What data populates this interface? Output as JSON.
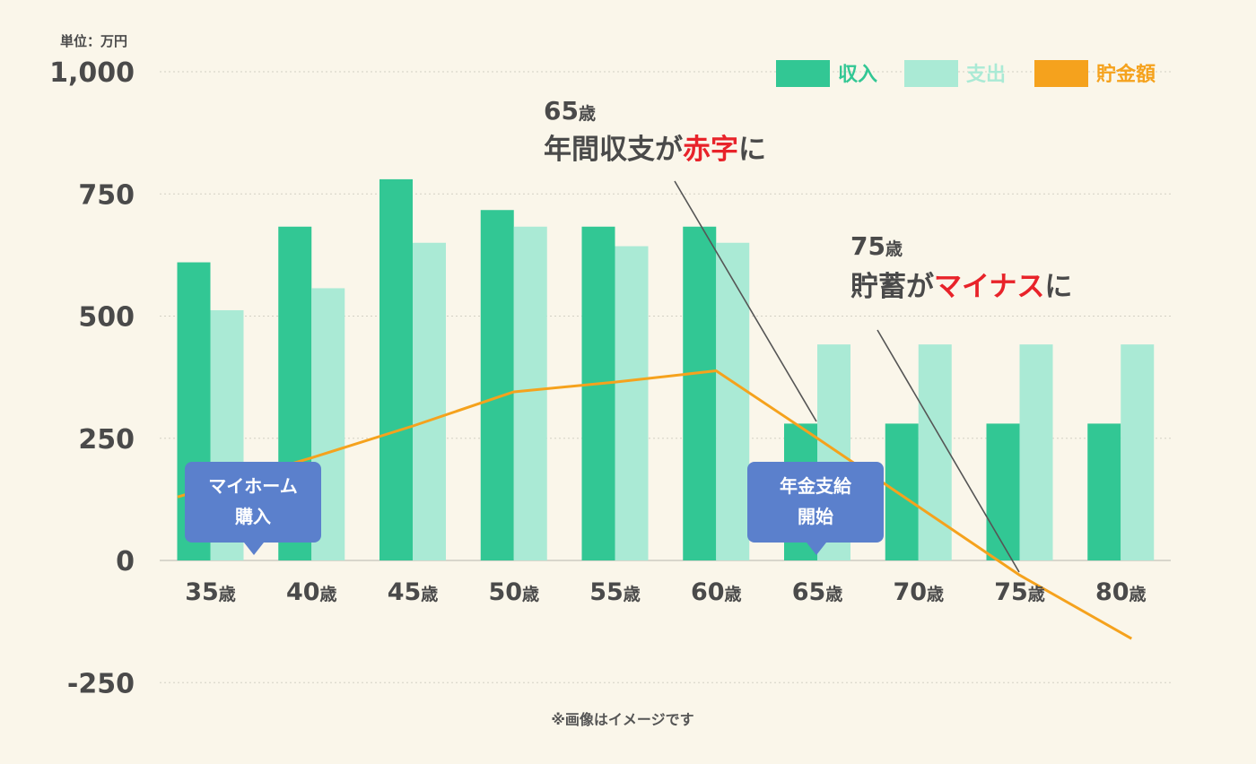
{
  "chart_data": {
    "type": "bar",
    "unit_label": "単位：万円",
    "y_ticks": [
      "1,000",
      "750",
      "500",
      "250",
      "0",
      "-250"
    ],
    "ylim": [
      -250,
      1000
    ],
    "grid": true,
    "legend_position": "top-right",
    "categories": [
      "35",
      "40",
      "45",
      "50",
      "55",
      "60",
      "65",
      "70",
      "75",
      "80"
    ],
    "category_suffix": "歳",
    "series": [
      {
        "name": "収入",
        "type": "bar",
        "color": "#32c794",
        "values": [
          610,
          683,
          780,
          717,
          683,
          683,
          280,
          280,
          280,
          280
        ]
      },
      {
        "name": "支出",
        "type": "bar",
        "color": "#aaead5",
        "values": [
          512,
          557,
          650,
          683,
          643,
          650,
          442,
          442,
          442,
          442
        ]
      },
      {
        "name": "貯金額",
        "type": "line",
        "color": "#f5a21d",
        "values": [
          130,
          210,
          275,
          345,
          365,
          388,
          250,
          110,
          -30,
          -160
        ]
      }
    ],
    "annotations": [
      {
        "age": "65",
        "age_suffix": "歳",
        "text_before": "年間収支が",
        "highlight": "赤字",
        "text_after": "に"
      },
      {
        "age": "75",
        "age_suffix": "歳",
        "text_before": "貯蓄が",
        "highlight": "マイナス",
        "text_after": "に"
      }
    ],
    "callouts": [
      {
        "line1": "マイホーム",
        "line2": "購入"
      },
      {
        "line1": "年金支給",
        "line2": "開始"
      }
    ],
    "highlight_color": "#e8232a",
    "text_color": "#4a4a4a",
    "note": "※画像はイメージです"
  }
}
